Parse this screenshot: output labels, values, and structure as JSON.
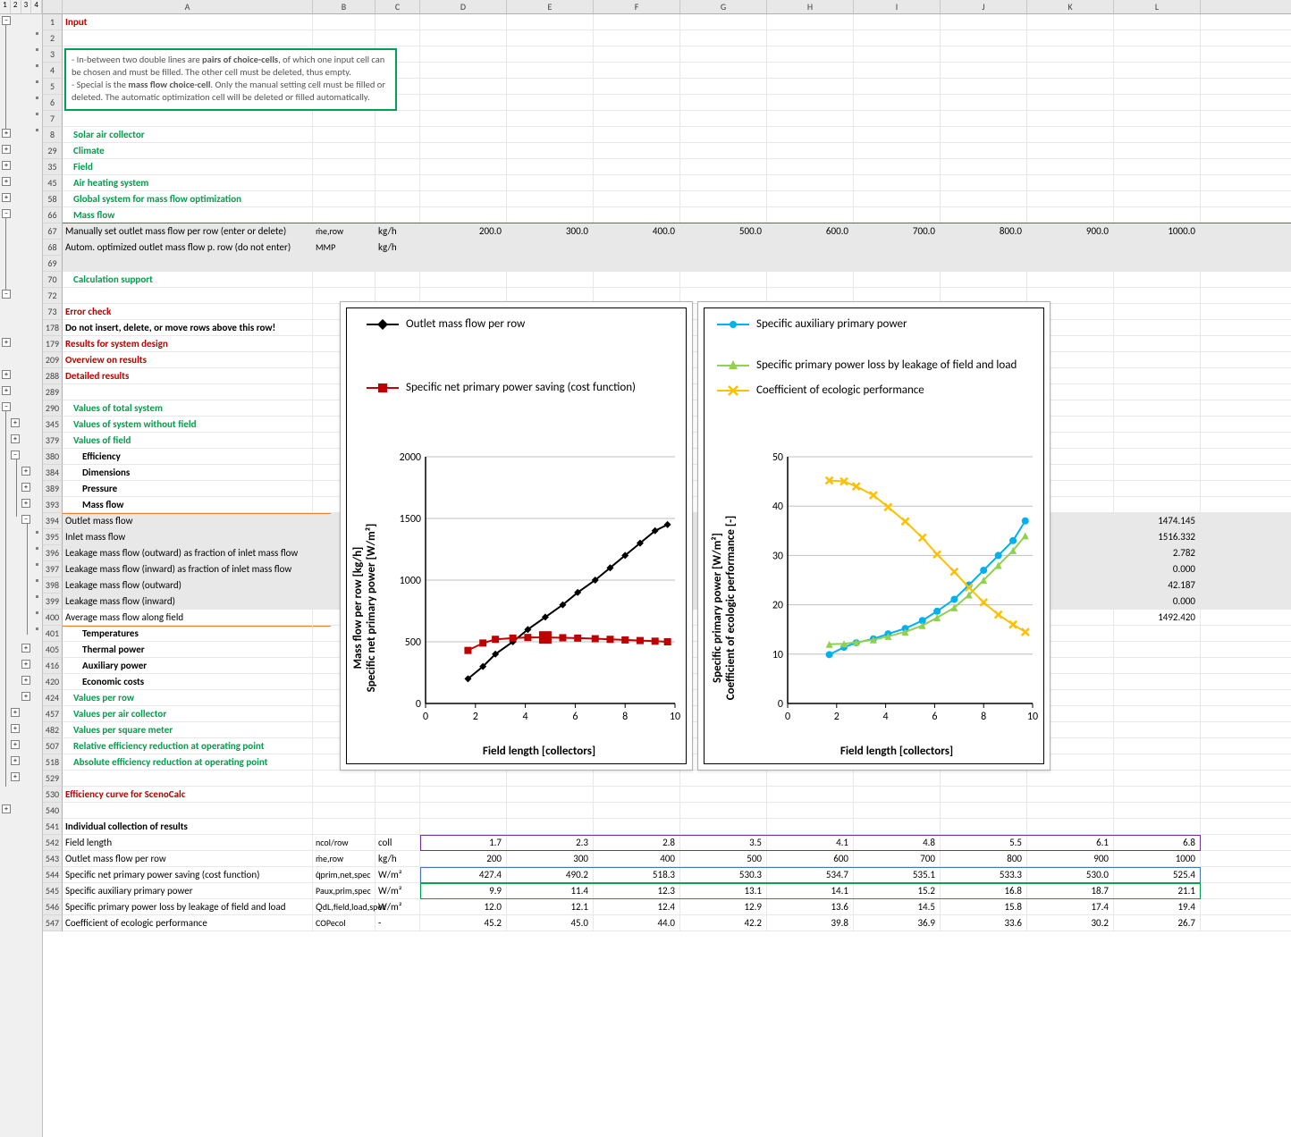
{
  "outline_levels": [
    "1",
    "2",
    "3",
    "4"
  ],
  "columns": [
    "A",
    "B",
    "C",
    "D",
    "E",
    "F",
    "G",
    "H",
    "I",
    "J",
    "K",
    "L"
  ],
  "col_widths": {
    "A": 280,
    "B": 70,
    "C": 50,
    "D": 97,
    "E": 97,
    "F": 97,
    "G": 97,
    "H": 97,
    "I": 97,
    "J": 97,
    "K": 97,
    "L": 97
  },
  "info_box": "- In-between two double lines are pairs of choice-cells, of which one input cell can be chosen and must be filled. The other cell must be deleted, thus empty.\n- Special is the mass flow choice-cell. Only the manual setting cell must be filled or deleted. The automatic optimization cell will be deleted or filled automatically.",
  "row1": {
    "num": "1",
    "text": "Input",
    "class": "red-bold"
  },
  "row2": {
    "num": "2"
  },
  "row3": {
    "num": "3"
  },
  "row4": {
    "num": "4"
  },
  "row5": {
    "num": "5"
  },
  "row6": {
    "num": "6"
  },
  "row7": {
    "num": "7"
  },
  "sections": [
    {
      "num": "8",
      "text": "Solar air collector"
    },
    {
      "num": "29",
      "text": "Climate"
    },
    {
      "num": "35",
      "text": "Field"
    },
    {
      "num": "45",
      "text": "Air heating system"
    },
    {
      "num": "58",
      "text": "Global system for mass flow optimization"
    },
    {
      "num": "66",
      "text": "Mass flow"
    }
  ],
  "row67": {
    "num": "67",
    "text": "Manually set outlet mass flow per row (enter or delete)",
    "sym": "ṁe,row",
    "unit": "kg/h",
    "vals": [
      "200.0",
      "300.0",
      "400.0",
      "500.0",
      "600.0",
      "700.0",
      "800.0",
      "900.0",
      "1000.0"
    ]
  },
  "row68": {
    "num": "68",
    "text": "Autom. optimized outlet mass flow p. row (do not enter)",
    "sym": "MMP",
    "unit": "kg/h"
  },
  "row69": {
    "num": "69"
  },
  "row70": {
    "num": "70",
    "text": "Calculation support",
    "class": "green-bold indent1"
  },
  "row72": {
    "num": "72"
  },
  "row73": {
    "num": "73",
    "text": "Error check",
    "class": "red-bold"
  },
  "row178": {
    "num": "178",
    "text": "Do not insert, delete, or move rows above this row!",
    "class": "black-bold"
  },
  "row179": {
    "num": "179",
    "text": "Results for system design",
    "class": "red-bold"
  },
  "row209": {
    "num": "209",
    "text": "Overview on results",
    "class": "red-bold"
  },
  "row288": {
    "num": "288",
    "text": "Detailed results",
    "class": "red-bold"
  },
  "row289": {
    "num": "289"
  },
  "row290": {
    "num": "290",
    "text": "Values of total system",
    "class": "green-bold indent1"
  },
  "row345": {
    "num": "345",
    "text": "Values of system without field",
    "class": "green-bold indent1"
  },
  "row379": {
    "num": "379",
    "text": "Values of field",
    "class": "green-bold indent1"
  },
  "row380": {
    "num": "380",
    "text": "Efficiency",
    "class": "black-bold indent2"
  },
  "row384": {
    "num": "384",
    "text": "Dimensions",
    "class": "black-bold indent2"
  },
  "row389": {
    "num": "389",
    "text": "Pressure",
    "class": "black-bold indent2"
  },
  "row393": {
    "num": "393",
    "text": "Mass flow",
    "class": "black-bold indent2"
  },
  "row394": {
    "num": "394",
    "text": "Outlet mass flow",
    "L": "1474.145"
  },
  "row395": {
    "num": "395",
    "text": "Inlet mass flow",
    "L": "1516.332"
  },
  "row396": {
    "num": "396",
    "text": "Leakage mass flow (outward) as fraction of inlet mass flow",
    "L": "2.782"
  },
  "row397": {
    "num": "397",
    "text": "Leakage mass flow (inward) as fraction of inlet mass flow",
    "L": "0.000"
  },
  "row398": {
    "num": "398",
    "text": "Leakage mass flow (outward)",
    "L": "42.187"
  },
  "row399": {
    "num": "399",
    "text": "Leakage mass flow (inward)",
    "L": "0.000"
  },
  "row400": {
    "num": "400",
    "text": "Average mass flow along field",
    "L": "1492.420"
  },
  "row401": {
    "num": "401",
    "text": "Temperatures",
    "class": "black-bold indent2"
  },
  "row405": {
    "num": "405",
    "text": "Thermal power",
    "class": "black-bold indent2"
  },
  "row416": {
    "num": "416",
    "text": "Auxiliary power",
    "class": "black-bold indent2"
  },
  "row420": {
    "num": "420",
    "text": "Economic costs",
    "class": "black-bold indent2"
  },
  "row424": {
    "num": "424",
    "text": "Values per row",
    "class": "green-bold indent1"
  },
  "row457": {
    "num": "457",
    "text": "Values per air collector",
    "class": "green-bold indent1"
  },
  "row482": {
    "num": "482",
    "text": "Values per square meter",
    "class": "green-bold indent1"
  },
  "row507": {
    "num": "507",
    "text": "Relative efficiency reduction at operating point",
    "class": "green-bold indent1"
  },
  "row518": {
    "num": "518",
    "text": "Absolute efficiency reduction at operating point",
    "class": "green-bold indent1"
  },
  "row529": {
    "num": "529"
  },
  "row530": {
    "num": "530",
    "text": "Efficiency curve for ScenoCalc",
    "class": "red-bold"
  },
  "row540": {
    "num": "540"
  },
  "rows_results": [
    {
      "num": "541",
      "A": "Individual collection of results",
      "class": "black-bold"
    },
    {
      "num": "542",
      "A": "Field length",
      "B": "ncol/row",
      "C": "coll",
      "vals": [
        "1.7",
        "2.3",
        "2.8",
        "3.5",
        "4.1",
        "4.8",
        "5.5",
        "6.1",
        "6.8"
      ],
      "style": "purple"
    },
    {
      "num": "543",
      "A": "Outlet mass flow per row",
      "B": "ṁe,row",
      "C": "kg/h",
      "vals": [
        "200",
        "300",
        "400",
        "500",
        "600",
        "700",
        "800",
        "900",
        "1000"
      ]
    },
    {
      "num": "544",
      "A": "Specific net primary power saving (cost function)",
      "B": "q̇prim,net,spec",
      "C": "W/m²",
      "vals": [
        "427.4",
        "490.2",
        "518.3",
        "530.3",
        "534.7",
        "535.1",
        "533.3",
        "530.0",
        "525.4"
      ],
      "style": "blue"
    },
    {
      "num": "545",
      "A": "Specific auxiliary primary power",
      "B": "Paux,prim,spec",
      "C": "W/m²",
      "vals": [
        "9.9",
        "11.4",
        "12.3",
        "13.1",
        "14.1",
        "15.2",
        "16.8",
        "18.7",
        "21.1"
      ],
      "style": "green"
    },
    {
      "num": "546",
      "A": "Specific primary power loss by leakage of field and load",
      "B": "Q̇dL,field,load,spec",
      "C": "W/m²",
      "vals": [
        "12.0",
        "12.1",
        "12.4",
        "12.9",
        "13.6",
        "14.5",
        "15.8",
        "17.4",
        "19.4"
      ]
    },
    {
      "num": "547",
      "A": "Coefficient of ecologic performance",
      "B": "COPecol",
      "C": "-",
      "vals": [
        "45.2",
        "45.0",
        "44.0",
        "42.2",
        "39.8",
        "36.9",
        "33.6",
        "30.2",
        "26.7"
      ]
    }
  ],
  "chart1": {
    "legend": [
      {
        "label": "Outlet mass flow per row",
        "color": "#000000",
        "marker": "diamond"
      },
      {
        "label": "Specific net primary power saving (cost function)",
        "color": "#c00000",
        "marker": "square"
      }
    ],
    "y_title": "Mass flow per row [kg/h]\nSpecific net primary power [W/m²]",
    "x_title": "Field length [collectors]",
    "xlim": [
      0,
      10
    ],
    "xticks": [
      0,
      2,
      4,
      6,
      8,
      10
    ],
    "ylim": [
      0,
      2000
    ],
    "yticks": [
      0,
      500,
      1000,
      1500,
      2000
    ],
    "series_black": {
      "x": [
        1.7,
        2.3,
        2.8,
        3.5,
        4.1,
        4.8,
        5.5,
        6.1,
        6.8,
        7.4,
        8.0,
        8.6,
        9.2,
        9.7
      ],
      "y": [
        200,
        300,
        400,
        500,
        600,
        700,
        800,
        900,
        1000,
        1100,
        1200,
        1300,
        1400,
        1450
      ]
    },
    "series_red": {
      "x": [
        1.7,
        2.3,
        2.8,
        3.5,
        4.1,
        4.8,
        5.5,
        6.1,
        6.8,
        7.4,
        8.0,
        8.6,
        9.2,
        9.7
      ],
      "y": [
        430,
        490,
        520,
        530,
        535,
        535,
        533,
        530,
        525,
        520,
        515,
        510,
        505,
        500
      ],
      "highlight": 5
    },
    "colors": {
      "black": "#000000",
      "red": "#c00000",
      "grid": "#bfbfbf"
    }
  },
  "chart2": {
    "legend": [
      {
        "label": "Specific auxiliary primary power",
        "color": "#00b0f0",
        "marker": "circle"
      },
      {
        "label": "Specific primary power loss by leakage of field and load",
        "color": "#92d050",
        "marker": "triangle"
      },
      {
        "label": "Coefficient of ecologic performance",
        "color": "#ffc000",
        "marker": "x"
      }
    ],
    "y_title": "Specific primary power [W/m²]\nCoefficient of ecologic performance [-]",
    "x_title": "Field length [collectors]",
    "xlim": [
      0,
      10
    ],
    "xticks": [
      0,
      2,
      4,
      6,
      8,
      10
    ],
    "ylim": [
      0,
      50
    ],
    "yticks": [
      0,
      10,
      20,
      30,
      40,
      50
    ],
    "series_blue": {
      "x": [
        1.7,
        2.3,
        2.8,
        3.5,
        4.1,
        4.8,
        5.5,
        6.1,
        6.8,
        7.4,
        8.0,
        8.6,
        9.2,
        9.7
      ],
      "y": [
        9.9,
        11.4,
        12.3,
        13.1,
        14.1,
        15.2,
        16.8,
        18.7,
        21.1,
        24,
        27,
        30,
        33,
        37
      ]
    },
    "series_green": {
      "x": [
        1.7,
        2.3,
        2.8,
        3.5,
        4.1,
        4.8,
        5.5,
        6.1,
        6.8,
        7.4,
        8.0,
        8.6,
        9.2,
        9.7
      ],
      "y": [
        12.0,
        12.1,
        12.4,
        12.9,
        13.6,
        14.5,
        15.8,
        17.4,
        19.4,
        22,
        25,
        28,
        31,
        34
      ]
    },
    "series_yellow": {
      "x": [
        1.7,
        2.3,
        2.8,
        3.5,
        4.1,
        4.8,
        5.5,
        6.1,
        6.8,
        7.4,
        8.0,
        8.6,
        9.2,
        9.7
      ],
      "y": [
        45.2,
        45.0,
        44.0,
        42.2,
        39.8,
        36.9,
        33.6,
        30.2,
        26.7,
        23.5,
        20.5,
        18,
        16,
        14.5
      ]
    },
    "colors": {
      "blue": "#00b0f0",
      "green": "#92d050",
      "yellow": "#ffc000",
      "grid": "#bfbfbf"
    }
  }
}
